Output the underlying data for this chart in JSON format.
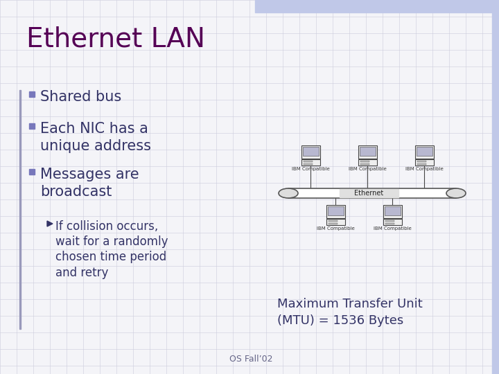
{
  "title": "Ethernet LAN",
  "title_color": "#550055",
  "title_fontsize": 28,
  "background_color": "#f4f4f8",
  "grid_color": "#ccccdd",
  "bullet_color": "#7777bb",
  "text_color": "#333366",
  "bullets": [
    "Shared bus",
    "Each NIC has a\nunique address",
    "Messages are\nbroadcast"
  ],
  "sub_bullet": "If collision occurs,\nwait for a randomly\nchosen time period\nand retry",
  "mtu_text": "Maximum Transfer Unit\n(MTU) = 1536 Bytes",
  "footer_text": "OS Fall’02",
  "footer_color": "#666688",
  "top_bar_color": "#c0c8e8",
  "right_bar_color": "#c0c8e8",
  "left_accent_color": "#9999bb",
  "bus_color": "#dddddd",
  "bus_edge_color": "#555555",
  "computer_body_color": "#eeeeee",
  "computer_screen_color": "#b8b8d0",
  "computer_edge_color": "#444444",
  "line_color": "#444444"
}
